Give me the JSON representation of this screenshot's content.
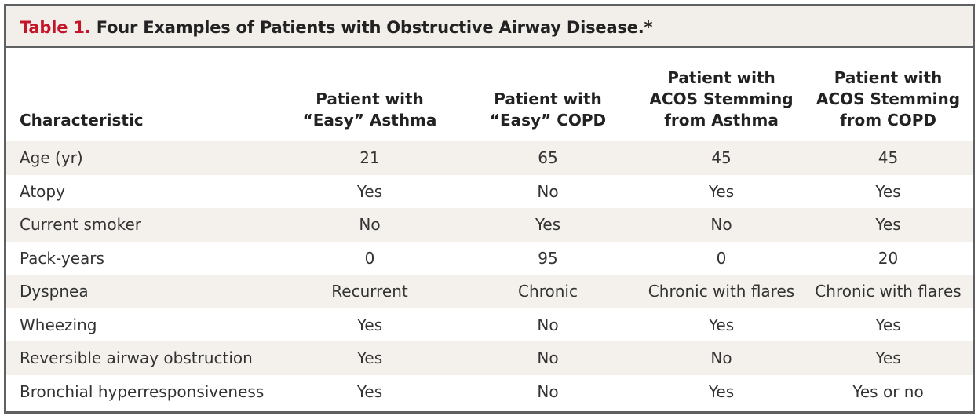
{
  "title": {
    "label": "Table 1.",
    "text": "Four Examples of Patients with Obstructive Airway Disease.*"
  },
  "columns": [
    [
      "Characteristic"
    ],
    [
      "Patient with",
      "“Easy” Asthma"
    ],
    [
      "Patient with",
      "“Easy” COPD"
    ],
    [
      "Patient with",
      "ACOS Stemming",
      "from Asthma"
    ],
    [
      "Patient with",
      "ACOS Stemming",
      "from COPD"
    ]
  ],
  "rows": [
    [
      "Age (yr)",
      "21",
      "65",
      "45",
      "45"
    ],
    [
      "Atopy",
      "Yes",
      "No",
      "Yes",
      "Yes"
    ],
    [
      "Current smoker",
      "No",
      "Yes",
      "No",
      "Yes"
    ],
    [
      "Pack-years",
      "0",
      "95",
      "0",
      "20"
    ],
    [
      "Dyspnea",
      "Recurrent",
      "Chronic",
      "Chronic with flares",
      "Chronic with flares"
    ],
    [
      "Wheezing",
      "Yes",
      "No",
      "Yes",
      "Yes"
    ],
    [
      "Reversible airway obstruction",
      "Yes",
      "No",
      "No",
      "Yes"
    ],
    [
      "Bronchial hyperresponsiveness",
      "Yes",
      "No",
      "Yes",
      "Yes or no"
    ]
  ],
  "colors": {
    "title_label": "#c4162a",
    "title_background": "#f2eee9",
    "row_shade": "#f4f1ec",
    "border": "#5f6062"
  }
}
